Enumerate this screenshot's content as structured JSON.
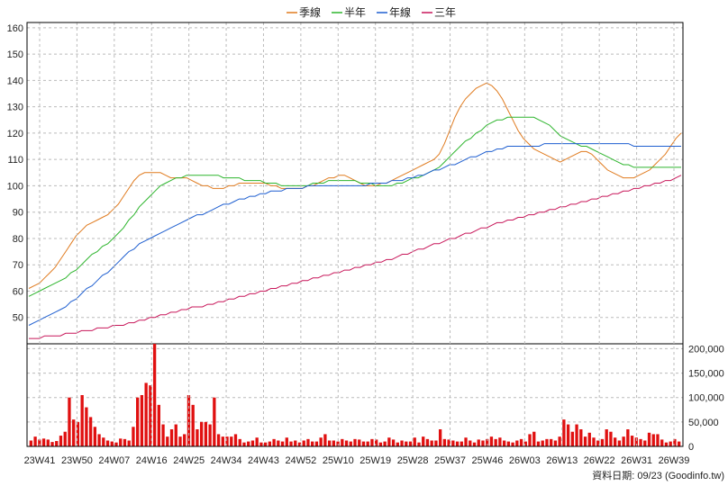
{
  "legend": [
    {
      "label": "季線",
      "color": "#e07b1f"
    },
    {
      "label": "半年",
      "color": "#2db52d"
    },
    {
      "label": "年線",
      "color": "#1f5fd0"
    },
    {
      "label": "三年",
      "color": "#c8175a"
    }
  ],
  "footer": "資料日期: 09/23  (Goodinfo.tw)",
  "chart_data": [
    {
      "type": "candlestick",
      "ylim": [
        40,
        162
      ],
      "yticks": [
        "50",
        "60",
        "70",
        "80",
        "90",
        "100",
        "110",
        "120",
        "130",
        "140",
        "150",
        "160"
      ],
      "ytick_values": [
        50,
        60,
        70,
        80,
        90,
        100,
        110,
        120,
        130,
        140,
        150,
        160
      ],
      "x_ticks": [
        "23W41",
        "23W50",
        "24W07",
        "24W16",
        "24W25",
        "24W34",
        "24W43",
        "24W52",
        "25W10",
        "25W19",
        "25W28",
        "25W37",
        "25W46",
        "26W03",
        "26W13",
        "26W22",
        "26W31",
        "26W39"
      ],
      "grid": true,
      "series": [
        {
          "name": "季線",
          "values": [
            61,
            62,
            63,
            65,
            67,
            69,
            72,
            75,
            78,
            81,
            83,
            85,
            86,
            87,
            88,
            89,
            91,
            93,
            96,
            99,
            102,
            104,
            105,
            105,
            105,
            105,
            104,
            103,
            103,
            103,
            103,
            102,
            101,
            100,
            100,
            99,
            99,
            99,
            100,
            100,
            101,
            101,
            101,
            101,
            101,
            101,
            100,
            100,
            99,
            99,
            99,
            99,
            99,
            100,
            100,
            101,
            102,
            103,
            103,
            104,
            104,
            103,
            102,
            101,
            100,
            100,
            100,
            101,
            101,
            102,
            103,
            104,
            105,
            106,
            107,
            108,
            109,
            110,
            112,
            116,
            121,
            126,
            130,
            133,
            135,
            137,
            138,
            139,
            138,
            136,
            133,
            129,
            125,
            121,
            118,
            116,
            114,
            113,
            112,
            111,
            110,
            109,
            110,
            111,
            112,
            113,
            113,
            112,
            110,
            108,
            106,
            105,
            104,
            103,
            103,
            103,
            104,
            105,
            106,
            108,
            110,
            112,
            115,
            118,
            120
          ]
        },
        {
          "name": "半年",
          "values": [
            58,
            59,
            60,
            61,
            62,
            63,
            64,
            65,
            67,
            68,
            70,
            72,
            74,
            75,
            77,
            78,
            80,
            82,
            84,
            87,
            89,
            92,
            94,
            96,
            98,
            100,
            101,
            102,
            103,
            103,
            104,
            104,
            104,
            104,
            104,
            104,
            104,
            103,
            103,
            103,
            103,
            102,
            102,
            102,
            102,
            101,
            101,
            101,
            100,
            100,
            100,
            100,
            100,
            100,
            101,
            101,
            101,
            102,
            102,
            102,
            102,
            102,
            102,
            101,
            101,
            101,
            100,
            100,
            100,
            100,
            101,
            101,
            102,
            103,
            103,
            104,
            105,
            106,
            107,
            109,
            111,
            113,
            115,
            117,
            118,
            120,
            121,
            123,
            124,
            125,
            125,
            126,
            126,
            126,
            126,
            126,
            126,
            125,
            124,
            123,
            121,
            119,
            118,
            117,
            116,
            115,
            115,
            114,
            113,
            112,
            111,
            110,
            109,
            108,
            108,
            107,
            107,
            107,
            107,
            107,
            107,
            107,
            107,
            107,
            107
          ]
        },
        {
          "name": "年線",
          "values": [
            47,
            48,
            49,
            50,
            51,
            52,
            53,
            54,
            56,
            57,
            59,
            61,
            62,
            64,
            66,
            67,
            69,
            71,
            73,
            75,
            76,
            78,
            79,
            80,
            81,
            82,
            83,
            84,
            85,
            86,
            87,
            88,
            89,
            89,
            90,
            91,
            92,
            93,
            93,
            94,
            95,
            95,
            96,
            96,
            97,
            97,
            98,
            98,
            98,
            99,
            99,
            99,
            99,
            100,
            100,
            100,
            100,
            100,
            100,
            100,
            100,
            100,
            100,
            100,
            100,
            101,
            101,
            101,
            101,
            102,
            102,
            102,
            103,
            103,
            104,
            104,
            105,
            106,
            106,
            107,
            108,
            108,
            109,
            110,
            111,
            111,
            112,
            113,
            113,
            114,
            114,
            115,
            115,
            115,
            115,
            115,
            115,
            115,
            116,
            116,
            116,
            116,
            116,
            116,
            116,
            116,
            116,
            116,
            116,
            116,
            116,
            116,
            116,
            116,
            116,
            115,
            115,
            115,
            115,
            115,
            115,
            115,
            115,
            115,
            115
          ]
        },
        {
          "name": "三年",
          "values": [
            42,
            42,
            42,
            43,
            43,
            43,
            43,
            44,
            44,
            44,
            45,
            45,
            45,
            46,
            46,
            46,
            47,
            47,
            47,
            48,
            48,
            49,
            49,
            50,
            50,
            51,
            51,
            52,
            52,
            53,
            53,
            54,
            54,
            54,
            55,
            55,
            56,
            56,
            57,
            57,
            58,
            58,
            59,
            59,
            60,
            60,
            61,
            61,
            62,
            62,
            63,
            63,
            64,
            64,
            65,
            65,
            66,
            66,
            67,
            67,
            68,
            68,
            69,
            69,
            70,
            70,
            71,
            71,
            72,
            72,
            73,
            74,
            74,
            75,
            76,
            76,
            77,
            78,
            78,
            79,
            80,
            80,
            81,
            82,
            82,
            83,
            84,
            84,
            85,
            86,
            86,
            87,
            87,
            88,
            88,
            89,
            89,
            90,
            90,
            91,
            91,
            92,
            92,
            93,
            93,
            94,
            94,
            95,
            95,
            96,
            96,
            97,
            97,
            98,
            98,
            99,
            99,
            100,
            100,
            101,
            101,
            102,
            102,
            103,
            104
          ]
        }
      ]
    },
    {
      "type": "bar",
      "ylim": [
        0,
        210000
      ],
      "yticks": [
        "0",
        "50,000",
        "100,000",
        "150,000",
        "200,000"
      ],
      "ytick_values": [
        0,
        50000,
        100000,
        150000,
        200000
      ],
      "color": "#e01010",
      "values": [
        12000,
        20000,
        14000,
        16000,
        14000,
        9000,
        11000,
        22000,
        30000,
        100000,
        55000,
        50000,
        105000,
        80000,
        60000,
        40000,
        25000,
        18000,
        12000,
        10000,
        8000,
        16000,
        15000,
        12000,
        40000,
        100000,
        105000,
        130000,
        125000,
        210000,
        85000,
        45000,
        20000,
        35000,
        45000,
        20000,
        25000,
        105000,
        85000,
        35000,
        50000,
        50000,
        45000,
        100000,
        25000,
        20000,
        20000,
        20000,
        25000,
        15000,
        8000,
        10000,
        12000,
        18000,
        8000,
        8000,
        10000,
        15000,
        12000,
        10000,
        18000,
        10000,
        12000,
        8000,
        12000,
        15000,
        10000,
        10000,
        18000,
        25000,
        12000,
        12000,
        10000,
        15000,
        12000,
        10000,
        15000,
        14000,
        10000,
        10000,
        15000,
        14000,
        8000,
        10000,
        18000,
        14000,
        8000,
        12000,
        10000,
        10000,
        18000,
        8000,
        20000,
        15000,
        12000,
        12000,
        35000,
        15000,
        14000,
        12000,
        10000,
        10000,
        18000,
        12000,
        8000,
        14000,
        12000,
        15000,
        20000,
        15000,
        18000,
        12000,
        10000,
        8000,
        12000,
        15000,
        10000,
        25000,
        30000,
        10000,
        12000,
        15000,
        15000,
        12000,
        20000,
        55000,
        45000,
        30000,
        45000,
        35000,
        20000,
        28000,
        18000,
        12000,
        15000,
        35000,
        30000,
        18000,
        12000,
        20000,
        35000,
        22000,
        18000,
        15000,
        12000,
        28000,
        25000,
        25000,
        14000,
        8000,
        10000,
        15000,
        10000
      ]
    }
  ]
}
